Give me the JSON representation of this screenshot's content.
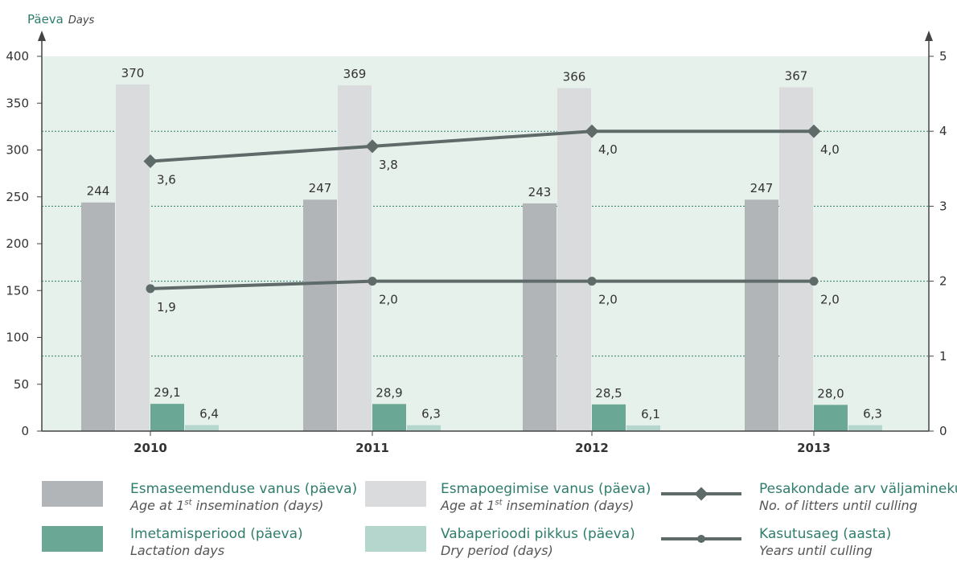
{
  "chart_data": {
    "type": "bar",
    "categories": [
      "2010",
      "2011",
      "2012",
      "2013"
    ],
    "title_main": "Päeva",
    "title_sub": "Days",
    "left_axis": {
      "ylim": [
        0,
        400
      ],
      "ticks": [
        "0",
        "50",
        "100",
        "150",
        "200",
        "250",
        "300",
        "350",
        "400"
      ]
    },
    "right_axis": {
      "ylim": [
        0,
        5
      ],
      "ticks": [
        "0",
        "1",
        "2",
        "3",
        "4",
        "5"
      ]
    },
    "grid": "horizontal dotted at right-axis integers",
    "bar_series": [
      {
        "name": "Esmaseemenduse vanus (päeva)",
        "name_en": "Age at 1st insemination (days)",
        "color": "#b1b5b8",
        "values": [
          244,
          247,
          243,
          247
        ],
        "labels": [
          "244",
          "247",
          "243",
          "247"
        ]
      },
      {
        "name": "Esmapoegimise vanus (päeva)",
        "name_en": "Age at 1st insemination (days)",
        "color": "#d9dbdd",
        "values": [
          370,
          369,
          366,
          367
        ],
        "labels": [
          "370",
          "369",
          "366",
          "367"
        ]
      },
      {
        "name": "Imetamisperiood (päeva)",
        "name_en": "Lactation days",
        "color": "#6aa895",
        "values": [
          29.1,
          28.9,
          28.5,
          28.0
        ],
        "labels": [
          "29,1",
          "28,9",
          "28,5",
          "28,0"
        ]
      },
      {
        "name": "Vabaperioodi pikkus (päeva)",
        "name_en": "Dry period (days)",
        "color": "#b4d6cc",
        "values": [
          6.4,
          6.3,
          6.1,
          6.3
        ],
        "labels": [
          "6,4",
          "6,3",
          "6,1",
          "6,3"
        ]
      }
    ],
    "line_series": [
      {
        "name": "Pesakondade arv väljaminekul",
        "name_en": "No. of litters until culling",
        "marker": "diamond",
        "color": "#5f6b68",
        "axis": "right",
        "values": [
          3.6,
          3.8,
          4.0,
          4.0
        ],
        "labels": [
          "3,6",
          "3,8",
          "4,0",
          "4,0"
        ]
      },
      {
        "name": "Kasutusaeg (aasta)",
        "name_en": "Years until culling",
        "marker": "circle",
        "color": "#5f6b68",
        "axis": "right",
        "values": [
          1.9,
          2.0,
          2.0,
          2.0
        ],
        "labels": [
          "1,9",
          "2,0",
          "2,0",
          "2,0"
        ]
      }
    ],
    "colors": {
      "plot_bg": "#e7f1ec",
      "title": "#2e7d6b",
      "grid": "#2e7d6b",
      "axis": "#444444"
    }
  },
  "legend": {
    "bar1": {
      "main": "Esmaseemenduse vanus (päeva)",
      "sub_pre": "Age at 1",
      "sub_sup": "st",
      "sub_post": " insemination (days)"
    },
    "bar2": {
      "main": "Esmapoegimise vanus (päeva)",
      "sub_pre": "Age at 1",
      "sub_sup": "st",
      "sub_post": " insemination (days)"
    },
    "line1": {
      "main": "Pesakondade arv väljaminekul",
      "sub": "No. of litters until culling"
    },
    "bar3": {
      "main": "Imetamisperiood (päeva)",
      "sub": "Lactation days"
    },
    "bar4": {
      "main": "Vabaperioodi pikkus (päeva)",
      "sub": "Dry period (days)"
    },
    "line2": {
      "main": "Kasutusaeg (aasta)",
      "sub": "Years until culling"
    }
  }
}
